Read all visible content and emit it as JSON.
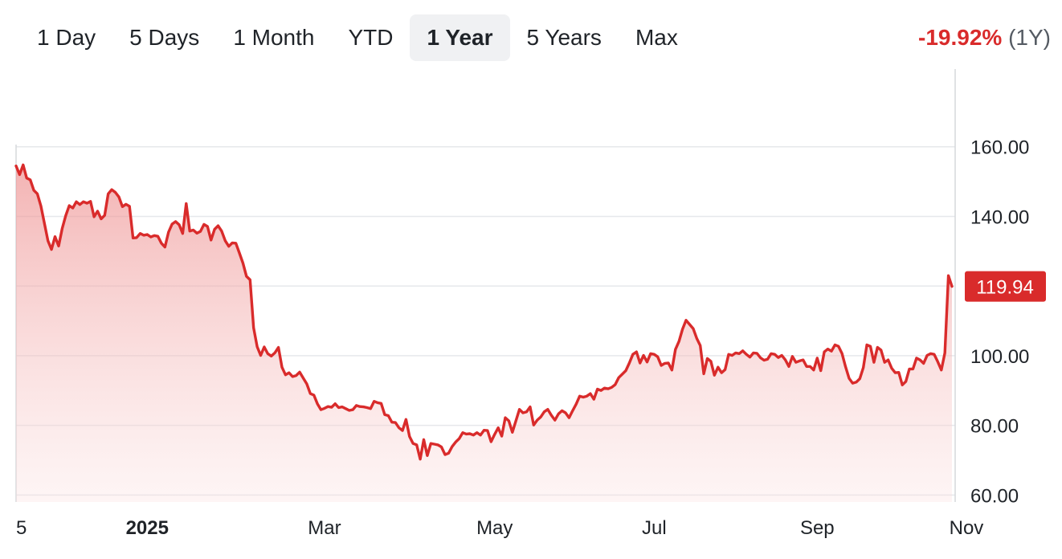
{
  "range_tabs": [
    {
      "label": "1 Day",
      "active": false
    },
    {
      "label": "5 Days",
      "active": false
    },
    {
      "label": "1 Month",
      "active": false
    },
    {
      "label": "YTD",
      "active": false
    },
    {
      "label": "1 Year",
      "active": true
    },
    {
      "label": "5 Years",
      "active": false
    },
    {
      "label": "Max",
      "active": false
    }
  ],
  "change": {
    "percent": "-19.92%",
    "period": "(1Y)"
  },
  "colors": {
    "line": "#d92b2b",
    "negative": "#d92b2b",
    "grid": "#e6e8eb"
  },
  "chart_data": {
    "type": "area",
    "ylim": [
      58,
      180
    ],
    "y_ticks": [
      60,
      80,
      100,
      140,
      160
    ],
    "y_tick_labels": [
      "60.00",
      "80.00",
      "100.00",
      "140.00",
      "160.00"
    ],
    "x_tick_labels": [
      "5",
      "2025",
      "Mar",
      "May",
      "Jul",
      "Sep",
      "Nov"
    ],
    "x_tick_bold": [
      false,
      true,
      false,
      false,
      false,
      false,
      false
    ],
    "x_tick_index": [
      0,
      37,
      87,
      135,
      180,
      226,
      272
    ],
    "last_value_label": "119.94",
    "values": [
      154.5,
      152,
      154.8,
      151,
      150.5,
      147.5,
      146.5,
      143,
      138,
      133,
      130.5,
      134.2,
      131.5,
      136.5,
      140.2,
      143.1,
      142.4,
      144.2,
      143.4,
      144.2,
      143.8,
      144.3,
      139.9,
      141.5,
      139.3,
      140.3,
      146.5,
      147.7,
      146.9,
      145.6,
      142.8,
      143.5,
      142.9,
      133.8,
      133.9,
      135.1,
      134.6,
      134.8,
      134.1,
      134.5,
      134.3,
      132.3,
      131.2,
      135.5,
      137.8,
      138.5,
      137.6,
      135.1,
      143.7,
      135.8,
      136.1,
      135.2,
      135.7,
      137.7,
      137.1,
      133.2,
      136.3,
      137.3,
      135.8,
      133,
      131.4,
      132.4,
      132.3,
      129.5,
      126.6,
      122.8,
      121.8,
      108,
      102.6,
      100.1,
      102.5,
      100.6,
      99.9,
      100.8,
      102.4,
      96.7,
      94.5,
      95.1,
      94,
      94.3,
      95.3,
      93.6,
      91.9,
      89.1,
      88.7,
      86.2,
      84.5,
      84.9,
      85.4,
      85.2,
      86.2,
      85.1,
      85.3,
      84.8,
      84.3,
      84.5,
      85.7,
      85.4,
      85.3,
      85.1,
      84.8,
      86.9,
      86.5,
      86.3,
      83.1,
      82.8,
      80.9,
      80.8,
      79.3,
      78.5,
      81.7,
      76.8,
      74.8,
      74.4,
      70.3,
      75.9,
      71.3,
      74.8,
      74.6,
      74.4,
      73.8,
      71.6,
      72,
      73.9,
      75.2,
      76.2,
      77.9,
      77.5,
      77.6,
      77.2,
      77.9,
      77.2,
      78.6,
      78.5,
      75.3,
      77.4,
      79.3,
      76.9,
      82.2,
      81.3,
      78,
      81.3,
      84.6,
      83.6,
      83.9,
      85.3,
      80.1,
      81.5,
      82.4,
      83.9,
      84.6,
      82.9,
      81.5,
      83.3,
      84.2,
      83.6,
      82.2,
      84.2,
      86.1,
      88.4,
      88.1,
      88.4,
      89.1,
      87.5,
      90.4,
      90,
      90.7,
      90.5,
      90.9,
      91.7,
      93.7,
      94.7,
      95.7,
      97.9,
      100.4,
      101.1,
      97.9,
      100.1,
      98.2,
      100.6,
      100.4,
      99.7,
      97.2,
      97.8,
      97.9,
      95.9,
      101.8,
      104.1,
      107.6,
      110.2,
      109,
      107.8,
      105,
      102.9,
      94.8,
      99.2,
      98.4,
      94.4,
      96.7,
      95.1,
      96,
      100.4,
      100.1,
      100.8,
      100.6,
      101.4,
      100.4,
      99.6,
      100.8,
      100.7,
      99.4,
      98.7,
      99,
      100.6,
      100.4,
      99.5,
      100.1,
      98.8,
      96.9,
      99.8,
      98.1,
      98.5,
      98.8,
      96.9,
      96.9,
      95.9,
      99.3,
      95.7,
      101.1,
      101.9,
      101.3,
      103.1,
      102.7,
      100.6,
      96.8,
      93.5,
      92.1,
      92.4,
      93.4,
      96.6,
      103.1,
      102.7,
      98.1,
      102.4,
      101.6,
      98.1,
      98.8,
      96.4,
      95.1,
      95.2,
      91.6,
      92.6,
      96.2,
      96.2,
      99.3,
      98.8,
      97.8,
      100.1,
      100.6,
      100.4,
      98.3,
      95.9,
      100.8,
      123,
      119.9
    ]
  }
}
